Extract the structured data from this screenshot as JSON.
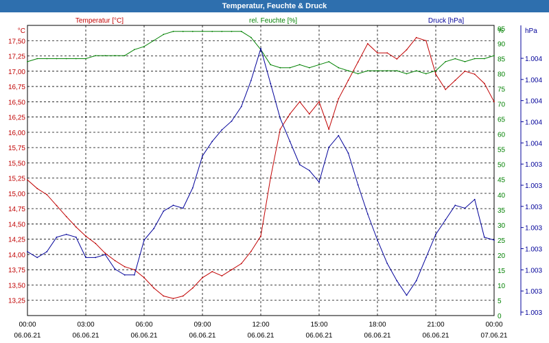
{
  "window": {
    "title": "Temperatur, Feuchte & Druck"
  },
  "chart_data": {
    "type": "line",
    "title": "Temperatur, Feuchte & Druck",
    "x": [
      "00:00",
      "00:30",
      "01:00",
      "01:30",
      "02:00",
      "02:30",
      "03:00",
      "03:30",
      "04:00",
      "04:30",
      "05:00",
      "05:30",
      "06:00",
      "06:30",
      "07:00",
      "07:30",
      "08:00",
      "08:30",
      "09:00",
      "09:30",
      "10:00",
      "10:30",
      "11:00",
      "11:30",
      "12:00",
      "12:30",
      "13:00",
      "13:30",
      "14:00",
      "14:30",
      "15:00",
      "15:30",
      "16:00",
      "16:30",
      "17:00",
      "17:30",
      "18:00",
      "18:30",
      "19:00",
      "19:30",
      "20:00",
      "20:30",
      "21:00",
      "21:30",
      "22:00",
      "22:30",
      "23:00",
      "23:30",
      "24:00"
    ],
    "x_ticks": [
      {
        "time": "00:00",
        "date": "06.06.21"
      },
      {
        "time": "03:00",
        "date": "06.06.21"
      },
      {
        "time": "06:00",
        "date": "06.06.21"
      },
      {
        "time": "09:00",
        "date": "06.06.21"
      },
      {
        "time": "12:00",
        "date": "06.06.21"
      },
      {
        "time": "15:00",
        "date": "06.06.21"
      },
      {
        "time": "18:00",
        "date": "06.06.21"
      },
      {
        "time": "21:00",
        "date": "06.06.21"
      },
      {
        "time": "00:00",
        "date": "07.06.21"
      }
    ],
    "axes": {
      "temperature": {
        "label": "Temperatur [°C]",
        "unit": "°C",
        "range": [
          13.0,
          17.75
        ],
        "color": "#c00000",
        "ticks": [
          "13,25",
          "13,50",
          "13,75",
          "14,00",
          "14,25",
          "14,50",
          "14,75",
          "15,00",
          "15,25",
          "15,50",
          "15,75",
          "16,00",
          "16,25",
          "16,50",
          "16,75",
          "17,00",
          "17,25",
          "17,50"
        ]
      },
      "humidity": {
        "label": "rel. Feuchte [%]",
        "unit": "%",
        "range": [
          0,
          96
        ],
        "color": "#008000",
        "ticks": [
          "0",
          "5",
          "10",
          "15",
          "20",
          "25",
          "30",
          "35",
          "40",
          "45",
          "50",
          "55",
          "60",
          "65",
          "70",
          "75",
          "80",
          "85",
          "90",
          "95"
        ]
      },
      "pressure": {
        "label": "Druck [hPa]",
        "unit": "hPa",
        "color": "#000099",
        "ticks": [
          "1.003",
          "1.003",
          "1.003",
          "1.003",
          "1.003",
          "1.003",
          "1.003",
          "1.003",
          "1.004",
          "1.004",
          "1.004",
          "1.004",
          "1.004"
        ]
      }
    },
    "series": [
      {
        "name": "Temperatur [°C]",
        "axis": "temperature",
        "color": "#c00000",
        "values": [
          15.22,
          15.08,
          14.98,
          14.8,
          14.62,
          14.45,
          14.3,
          14.18,
          14.02,
          13.9,
          13.8,
          13.75,
          13.62,
          13.45,
          13.32,
          13.28,
          13.32,
          13.45,
          13.62,
          13.72,
          13.65,
          13.75,
          13.85,
          14.05,
          14.3,
          15.25,
          16.05,
          16.3,
          16.5,
          16.3,
          16.5,
          16.05,
          16.55,
          16.85,
          17.15,
          17.45,
          17.3,
          17.3,
          17.2,
          17.35,
          17.55,
          17.5,
          16.95,
          16.7,
          16.85,
          17.0,
          16.95,
          16.8,
          16.5
        ]
      },
      {
        "name": "rel. Feuchte [%]",
        "axis": "humidity",
        "color": "#008000",
        "values": [
          84,
          85,
          85,
          85,
          85,
          85,
          85,
          86,
          86,
          86,
          86,
          88,
          89,
          91,
          93,
          94,
          94,
          94,
          94,
          94,
          94,
          94,
          94,
          92,
          88,
          83,
          82,
          82,
          83,
          82,
          83,
          84,
          82,
          81,
          80,
          81,
          81,
          81,
          81,
          80,
          81,
          80,
          81,
          84,
          85,
          84,
          85,
          85,
          86
        ]
      },
      {
        "name": "Druck [hPa]",
        "axis": "pressure",
        "color": "#000099",
        "scale": [
          0,
          100
        ],
        "values": [
          22,
          20,
          22,
          27,
          28,
          27,
          20,
          20,
          21,
          16,
          14,
          14,
          26,
          30,
          36,
          38,
          37,
          44,
          55,
          60,
          64,
          67,
          72,
          81,
          92,
          80,
          68,
          60,
          52,
          50,
          46,
          58,
          62,
          56,
          45,
          35,
          26,
          18,
          12,
          7,
          12,
          20,
          28,
          33,
          38,
          37,
          40,
          27,
          26
        ]
      }
    ]
  }
}
